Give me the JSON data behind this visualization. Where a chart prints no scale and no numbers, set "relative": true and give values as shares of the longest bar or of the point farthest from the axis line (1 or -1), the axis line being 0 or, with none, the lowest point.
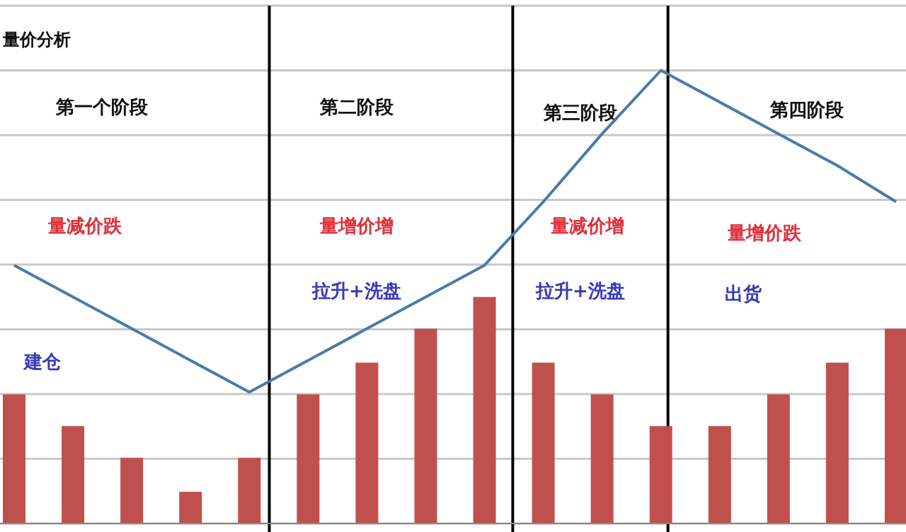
{
  "chart_data": [
    {
      "type": "bar",
      "title": "量价分析",
      "relative": true,
      "grid": "y",
      "categories": [
        null,
        null,
        null,
        null,
        null,
        null,
        null,
        null,
        null,
        null,
        null,
        null,
        null,
        null,
        null,
        null
      ],
      "values": [
        0.57,
        0.43,
        0.29,
        0.14,
        0.29,
        0.57,
        0.71,
        0.86,
        1,
        0.71,
        0.57,
        0.43,
        0.43,
        0.57,
        0.71,
        0.86
      ],
      "color": "#c0504d",
      "annotations": [
        "第一个阶段",
        "第二阶段",
        "第三阶段",
        "第四阶段",
        "量减价跌",
        "量增价增",
        "量减价增",
        "量增价跌",
        "建仓",
        "拉升+洗盘",
        "拉升+洗盘",
        "出货"
      ]
    },
    {
      "type": "line",
      "relative": true,
      "categories": [
        null,
        null,
        null,
        null,
        null,
        null,
        null,
        null,
        null,
        null,
        null,
        null,
        null,
        null,
        null,
        null
      ],
      "values": [
        0.57,
        0.5,
        0.43,
        0.36,
        0.29,
        0.36,
        0.43,
        0.5,
        0.57,
        0.71,
        0.86,
        1,
        0.93,
        0.86,
        0.79,
        0.71
      ],
      "color": "#4a7ba8"
    }
  ]
}
